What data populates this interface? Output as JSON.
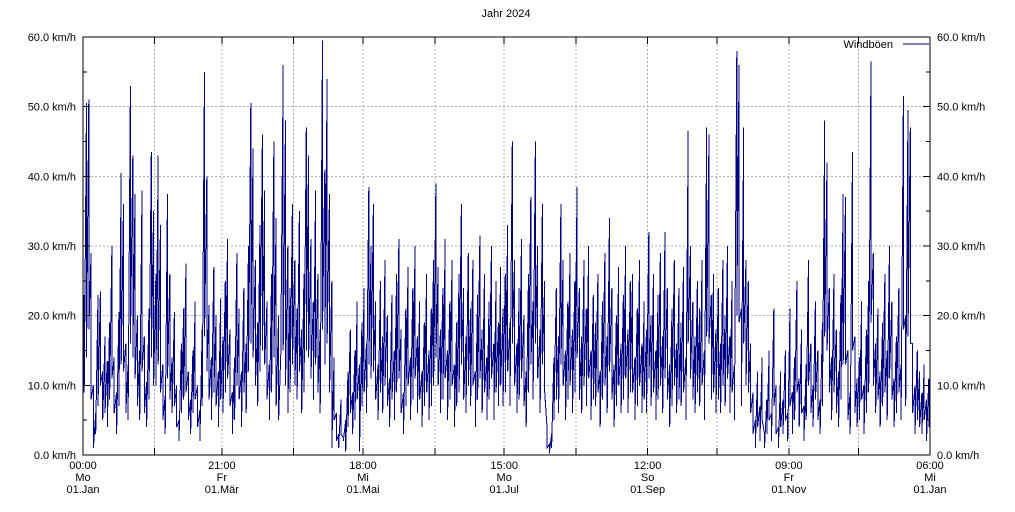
{
  "title": "Jahr 2024",
  "legend": {
    "label": "Windböen"
  },
  "colors": {
    "line": "#000080",
    "grid": "#ababab",
    "frame": "#000000",
    "text": "#000000",
    "background": "#ffffff"
  },
  "y_axis": {
    "min": 0,
    "max": 60,
    "major_step": 10,
    "minor_step": 5,
    "tick_labels": [
      "0.0 km/h",
      "10.0 km/h",
      "20.0 km/h",
      "30.0 km/h",
      "40.0 km/h",
      "50.0 km/h",
      "60.0 km/h"
    ]
  },
  "x_axis": {
    "total_days": 366,
    "month_grid_days": [
      31,
      60,
      91,
      121,
      152,
      182,
      213,
      244,
      274,
      305,
      335
    ],
    "ticks": [
      {
        "time": "00:00",
        "weekday": "Mo",
        "date": "01.Jan",
        "day": 0
      },
      {
        "time": "21:00",
        "weekday": "Fr",
        "date": "01.Mär",
        "day": 60
      },
      {
        "time": "18:00",
        "weekday": "Mi",
        "date": "01.Mai",
        "day": 121
      },
      {
        "time": "15:00",
        "weekday": "Mo",
        "date": "01.Jul",
        "day": 182
      },
      {
        "time": "12:00",
        "weekday": "So",
        "date": "01.Sep",
        "day": 244
      },
      {
        "time": "09:00",
        "weekday": "Fr",
        "date": "01.Nov",
        "day": 305
      },
      {
        "time": "06:00",
        "weekday": "Mi",
        "date": "01.Jan",
        "day": 366
      }
    ]
  },
  "chart_data": {
    "type": "line",
    "title": "Jahr 2024",
    "xlabel": "",
    "ylabel": "km/h",
    "ylim": [
      0,
      60
    ],
    "grid": true,
    "legend_position": "top-right",
    "x_unit": "day_of_year_2024",
    "series": [
      {
        "name": "Windböen",
        "unit": "km/h",
        "daily_max": [
          23,
          50.5,
          51,
          29,
          10,
          6,
          23,
          23.5,
          12,
          17,
          13.5,
          19,
          30,
          14,
          9,
          20.5,
          40.5,
          36,
          16,
          13,
          53,
          43,
          37.5,
          20,
          15,
          38,
          17,
          10.5,
          21,
          43.5,
          35,
          26,
          43,
          33,
          13,
          8.5,
          37.5,
          26,
          14,
          20.5,
          10,
          5,
          16,
          21,
          27.5,
          12,
          8,
          15,
          22,
          10,
          6.5,
          18,
          55,
          40,
          21.5,
          14,
          27,
          20,
          12,
          22.5,
          17,
          25,
          31,
          18,
          9,
          14,
          29,
          21,
          12,
          24,
          16,
          30,
          50.5,
          44,
          28,
          19,
          33,
          46,
          38,
          22,
          13,
          26,
          45,
          34,
          20,
          15,
          56,
          48,
          30,
          24,
          36,
          28,
          21,
          35,
          18,
          26,
          47,
          43,
          31,
          22,
          38,
          26,
          18,
          59.5,
          41,
          54,
          37.5,
          25,
          14,
          6,
          3,
          8,
          2.5,
          5,
          12,
          18,
          9,
          15,
          22,
          13,
          19,
          24,
          16,
          38.5,
          30,
          36,
          22,
          13,
          25,
          17,
          28,
          20,
          11,
          23,
          15,
          26,
          31,
          18,
          9,
          21,
          27,
          14,
          24,
          30,
          17,
          22,
          12,
          19,
          26,
          15,
          21,
          28,
          39,
          27,
          18,
          24,
          31,
          15,
          22,
          28,
          13,
          19,
          26,
          36,
          24,
          17,
          29,
          21,
          28,
          12,
          23,
          31.5,
          18,
          26,
          14,
          22,
          30,
          16,
          25,
          19,
          27,
          21,
          26,
          33,
          19,
          45,
          28,
          16,
          24,
          31,
          20,
          12,
          26,
          37,
          22,
          45,
          30,
          18,
          36,
          25,
          4,
          1.5,
          3,
          14,
          24,
          17,
          36,
          28,
          15,
          22,
          29,
          18,
          25,
          38.5,
          24,
          17,
          28,
          21,
          30,
          15,
          23,
          19,
          26,
          12,
          22,
          29,
          17,
          34,
          24,
          13,
          20,
          27,
          16,
          23,
          30,
          18,
          25,
          26,
          14,
          21,
          28,
          16,
          22,
          18,
          32,
          20,
          26,
          15,
          23,
          29,
          17,
          32,
          24,
          13,
          21,
          28,
          16,
          24,
          19,
          27,
          14,
          46.5,
          30,
          22,
          17,
          25,
          21,
          28,
          15,
          47,
          46,
          23,
          26,
          18,
          24,
          16,
          28,
          20,
          30,
          17,
          25,
          13,
          58,
          56,
          21,
          47,
          28,
          25,
          16,
          9,
          5,
          12,
          7,
          14,
          3,
          8,
          15,
          6,
          21,
          10,
          4,
          12,
          8,
          15,
          6,
          21,
          9,
          14,
          25,
          11,
          18,
          7,
          13,
          28,
          16,
          10,
          22,
          15,
          8,
          19,
          48,
          42,
          24,
          14,
          26,
          18,
          12,
          23,
          37.5,
          37,
          15,
          9,
          43.5,
          17,
          11,
          14,
          22,
          10,
          18,
          25,
          56.5,
          29,
          16,
          21,
          12,
          19,
          26,
          15,
          30,
          22,
          11,
          17,
          24,
          13,
          51.5,
          20,
          49.5,
          47,
          16,
          10,
          15,
          12,
          9,
          13,
          8,
          11
        ],
        "daily_min": [
          9,
          14,
          18,
          8,
          1,
          3,
          7,
          10,
          5,
          6,
          4,
          8,
          11,
          6,
          3,
          7,
          13,
          12,
          6,
          5,
          16,
          14,
          11,
          7,
          5,
          12,
          6,
          4,
          8,
          14,
          10,
          10,
          13,
          9,
          5,
          3,
          11,
          8,
          6,
          7,
          4,
          2,
          6,
          8,
          9,
          5,
          3,
          6,
          8,
          4,
          2,
          7,
          17,
          12,
          8,
          5,
          9,
          7,
          4,
          8,
          6,
          9,
          11,
          7,
          3,
          5,
          10,
          8,
          4,
          9,
          6,
          12,
          16,
          14,
          10,
          7,
          12,
          15,
          13,
          8,
          5,
          9,
          14,
          7,
          5,
          17,
          15,
          10,
          6,
          9,
          13,
          10,
          8,
          12,
          6,
          9,
          15,
          14,
          11,
          8,
          13,
          9,
          6,
          18,
          13,
          16,
          9,
          1,
          5,
          2,
          1,
          3,
          2,
          0.5,
          4,
          6,
          3,
          5,
          8,
          0.5,
          7,
          9,
          6,
          13,
          11,
          12,
          8,
          5,
          9,
          6,
          10,
          7,
          4,
          8,
          5,
          9,
          11,
          6,
          3,
          7,
          10,
          5,
          8,
          11,
          6,
          8,
          4,
          7,
          9,
          5,
          7,
          10,
          14,
          10,
          6,
          8,
          11,
          5,
          8,
          10,
          4,
          7,
          9,
          13,
          8,
          6,
          10,
          7,
          10,
          4,
          8,
          11,
          6,
          9,
          5,
          8,
          11,
          5,
          9,
          7,
          10,
          7,
          9,
          12,
          7,
          16,
          10,
          6,
          8,
          11,
          7,
          4,
          9,
          13,
          8,
          16,
          11,
          6,
          13,
          9,
          1,
          0.2,
          1,
          5,
          8,
          6,
          13,
          10,
          5,
          8,
          10,
          6,
          9,
          14,
          8,
          6,
          10,
          7,
          11,
          5,
          8,
          7,
          9,
          4,
          8,
          10,
          6,
          12,
          8,
          4,
          7,
          10,
          6,
          8,
          11,
          6,
          9,
          9,
          5,
          7,
          10,
          6,
          8,
          6,
          11,
          7,
          9,
          5,
          8,
          10,
          6,
          11,
          8,
          4,
          7,
          10,
          6,
          8,
          7,
          9,
          5,
          16,
          11,
          8,
          6,
          9,
          7,
          10,
          5,
          17,
          16,
          8,
          9,
          6,
          8,
          6,
          10,
          7,
          11,
          6,
          9,
          5,
          20,
          19,
          7,
          16,
          10,
          9,
          6,
          3,
          1,
          4,
          2,
          5,
          1,
          3,
          5,
          2,
          7,
          3,
          1,
          4,
          3,
          5,
          2,
          7,
          3,
          5,
          9,
          4,
          6,
          2,
          5,
          10,
          6,
          4,
          8,
          5,
          3,
          7,
          17,
          15,
          9,
          5,
          9,
          6,
          4,
          8,
          13,
          13,
          5,
          3,
          15,
          6,
          4,
          5,
          8,
          3,
          6,
          9,
          19,
          10,
          6,
          8,
          4,
          7,
          9,
          5,
          11,
          8,
          4,
          6,
          9,
          5,
          18,
          7,
          17,
          16,
          6,
          3,
          5,
          4,
          3,
          5,
          2,
          4
        ]
      }
    ]
  }
}
